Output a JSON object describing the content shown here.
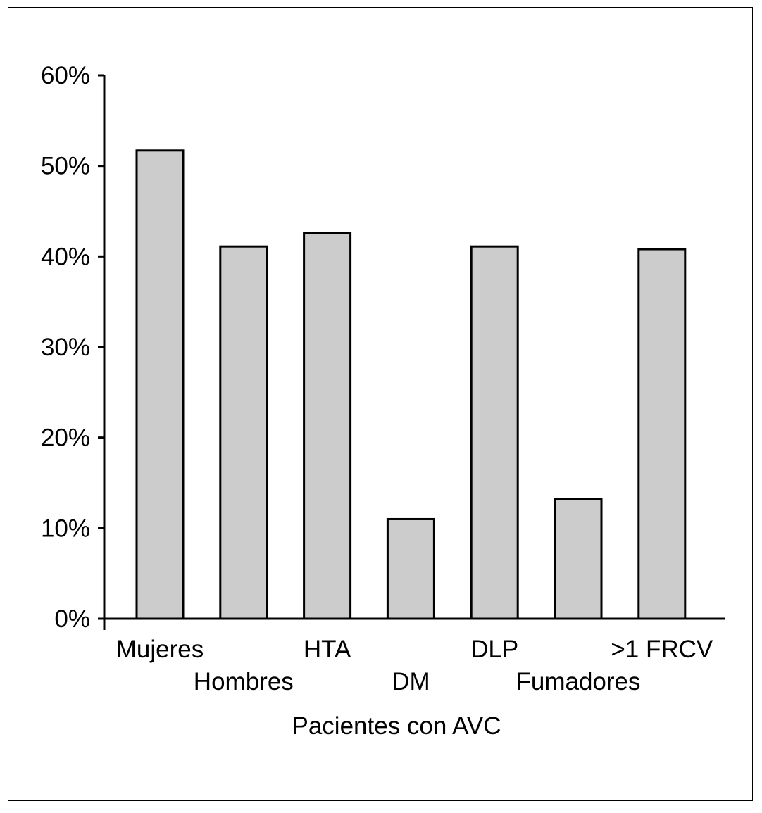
{
  "chart_data": {
    "type": "bar",
    "title": "",
    "xlabel": "Pacientes con AVC",
    "ylabel": "",
    "categories": [
      "Mujeres",
      "Hombres",
      "HTA",
      "DM",
      "DLP",
      "Fumadores",
      ">1 FRCV"
    ],
    "values": [
      51.7,
      41.1,
      42.6,
      11.0,
      41.1,
      13.2,
      40.8
    ],
    "unit": "%",
    "ylim": [
      0,
      60
    ],
    "yticks": [
      0,
      10,
      20,
      30,
      40,
      50,
      60
    ],
    "ytick_labels": [
      "0%",
      "10%",
      "20%",
      "30%",
      "40%",
      "50%",
      "60%"
    ],
    "grid": false,
    "legend": "none",
    "bar_color": "#cccccc",
    "bar_edge_color": "#000000"
  }
}
